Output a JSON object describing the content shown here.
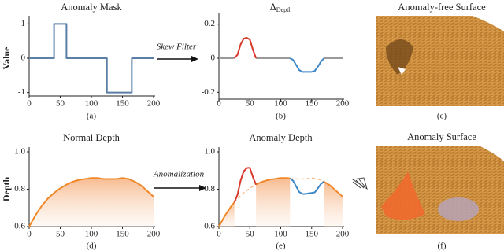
{
  "chart_data": [
    {
      "type": "line",
      "title": "Anomaly Mask",
      "ylabel": "Value",
      "caption": "(a)",
      "x": [
        0,
        40,
        40,
        60,
        60,
        125,
        125,
        165,
        165,
        200
      ],
      "series": [
        {
          "color": "#5b7fa6",
          "values": [
            0,
            0,
            1,
            1,
            0,
            0,
            -1,
            -1,
            0,
            0
          ]
        }
      ],
      "xlim": [
        0,
        200
      ],
      "xticks": [
        0,
        50,
        100,
        150,
        200
      ],
      "ylim": [
        -1.1,
        1.1
      ],
      "yticks": [
        -1,
        0,
        1
      ]
    },
    {
      "type": "line",
      "title": "Δ",
      "title_subscript": "Depth",
      "caption": "(b)",
      "x": [
        0,
        5,
        10,
        15,
        20,
        25,
        30,
        35,
        40,
        45,
        50,
        55,
        60,
        65,
        70,
        75,
        80,
        85,
        90,
        95,
        100,
        105,
        110,
        115,
        120,
        125,
        130,
        135,
        140,
        145,
        150,
        155,
        160,
        165,
        170,
        175,
        180,
        185,
        190,
        195,
        200
      ],
      "series": [
        {
          "color": "#9a9a9a",
          "values": [
            0,
            0,
            0,
            0,
            0,
            0,
            null,
            null,
            null,
            null,
            null,
            null,
            0,
            0,
            0,
            0,
            0,
            0,
            0,
            0,
            0,
            0,
            0,
            0,
            null,
            null,
            null,
            null,
            null,
            null,
            null,
            null,
            null,
            null,
            0,
            0,
            0,
            0,
            0,
            0,
            0
          ]
        },
        {
          "color": "#d9382b",
          "values": [
            null,
            null,
            null,
            null,
            null,
            0,
            0.02,
            0.08,
            0.115,
            0.12,
            0.11,
            0.05,
            0,
            null,
            null,
            null,
            null,
            null,
            null,
            null,
            null,
            null,
            null,
            null,
            null,
            null,
            null,
            null,
            null,
            null,
            null,
            null,
            null,
            null,
            null,
            null,
            null,
            null,
            null,
            null,
            null
          ]
        },
        {
          "color": "#3d86c6",
          "values": [
            null,
            null,
            null,
            null,
            null,
            null,
            null,
            null,
            null,
            null,
            null,
            null,
            null,
            null,
            null,
            null,
            null,
            null,
            null,
            null,
            null,
            null,
            null,
            0,
            -0.01,
            -0.04,
            -0.07,
            -0.08,
            -0.08,
            -0.08,
            -0.08,
            -0.075,
            -0.05,
            -0.02,
            0,
            null,
            null,
            null,
            null,
            null,
            null
          ]
        }
      ],
      "xlim": [
        0,
        200
      ],
      "xticks": [
        0,
        50,
        100,
        150,
        200
      ],
      "ylim": [
        -0.24,
        0.24
      ],
      "yticks": [
        -0.2,
        0,
        0.2
      ]
    },
    {
      "type": "area",
      "title": "Normal Depth",
      "ylabel": "Depth",
      "caption": "(d)",
      "x": [
        0,
        10,
        20,
        30,
        40,
        50,
        60,
        70,
        80,
        90,
        100,
        110,
        120,
        130,
        140,
        150,
        160,
        170,
        180,
        190,
        200
      ],
      "series": [
        {
          "color": "#f0882a",
          "fill": true,
          "values": [
            0.6,
            0.66,
            0.71,
            0.75,
            0.78,
            0.805,
            0.825,
            0.84,
            0.85,
            0.855,
            0.86,
            0.86,
            0.855,
            0.855,
            0.855,
            0.86,
            0.855,
            0.84,
            0.82,
            0.79,
            0.76
          ]
        }
      ],
      "xlim": [
        0,
        200
      ],
      "xticks": [
        0,
        50,
        100,
        150,
        200
      ],
      "ylim": [
        0.6,
        1.0
      ],
      "yticks": [
        0.6,
        0.8,
        {
          "value": 1.0,
          "label": "1.0"
        }
      ]
    },
    {
      "type": "line",
      "title": "Anomaly Depth",
      "caption": "(e)",
      "x": [
        0,
        5,
        10,
        15,
        20,
        25,
        30,
        35,
        40,
        45,
        50,
        55,
        60,
        65,
        70,
        75,
        80,
        85,
        90,
        95,
        100,
        105,
        110,
        115,
        120,
        125,
        130,
        135,
        140,
        145,
        150,
        155,
        160,
        165,
        170,
        175,
        180,
        185,
        190,
        195,
        200
      ],
      "series": [
        {
          "color": "#f0882a",
          "fill": true,
          "values": [
            0.6,
            0.63,
            0.66,
            0.685,
            0.71,
            0.73,
            null,
            null,
            null,
            null,
            null,
            null,
            0.825,
            0.833,
            0.84,
            0.845,
            0.85,
            0.853,
            0.855,
            0.858,
            0.86,
            0.86,
            0.86,
            0.858,
            null,
            null,
            null,
            null,
            null,
            null,
            null,
            null,
            null,
            null,
            0.84,
            0.83,
            0.82,
            0.805,
            0.79,
            0.775,
            0.76
          ]
        },
        {
          "color": "#f5b27a",
          "dash": true,
          "values": [
            null,
            null,
            null,
            null,
            null,
            0.73,
            0.75,
            0.765,
            0.78,
            0.793,
            0.805,
            0.815,
            0.825,
            null,
            null,
            null,
            null,
            null,
            null,
            null,
            null,
            null,
            null,
            0.858,
            0.855,
            0.855,
            0.855,
            0.855,
            0.855,
            0.858,
            0.86,
            0.858,
            0.855,
            0.848,
            0.84,
            null,
            null,
            null,
            null,
            null,
            null
          ]
        },
        {
          "color": "#d9382b",
          "values": [
            null,
            null,
            null,
            null,
            null,
            0.73,
            0.77,
            0.845,
            0.895,
            0.913,
            0.915,
            0.865,
            0.825,
            null,
            null,
            null,
            null,
            null,
            null,
            null,
            null,
            null,
            null,
            null,
            null,
            null,
            null,
            null,
            null,
            null,
            null,
            null,
            null,
            null,
            null,
            null,
            null,
            null,
            null,
            null,
            null
          ]
        },
        {
          "color": "#3d86c6",
          "values": [
            null,
            null,
            null,
            null,
            null,
            null,
            null,
            null,
            null,
            null,
            null,
            null,
            null,
            null,
            null,
            null,
            null,
            null,
            null,
            null,
            null,
            null,
            null,
            0.858,
            0.845,
            0.815,
            0.785,
            0.775,
            0.775,
            0.778,
            0.78,
            0.783,
            0.805,
            0.828,
            0.84,
            null,
            null,
            null,
            null,
            null,
            null
          ]
        }
      ],
      "xlim": [
        0,
        200
      ],
      "xticks": [
        0,
        50,
        100,
        150,
        200
      ],
      "ylim": [
        0.6,
        1.0
      ],
      "yticks": [
        0.6,
        0.8,
        {
          "value": 1.0,
          "label": "1.0"
        }
      ]
    }
  ],
  "images": [
    {
      "title": "Anomaly-free Surface",
      "caption": "(c)"
    },
    {
      "title": "Anomaly Surface",
      "caption": "(f)"
    }
  ],
  "arrows": [
    {
      "label": "Skew Filter"
    },
    {
      "label": "Anomalization"
    }
  ]
}
